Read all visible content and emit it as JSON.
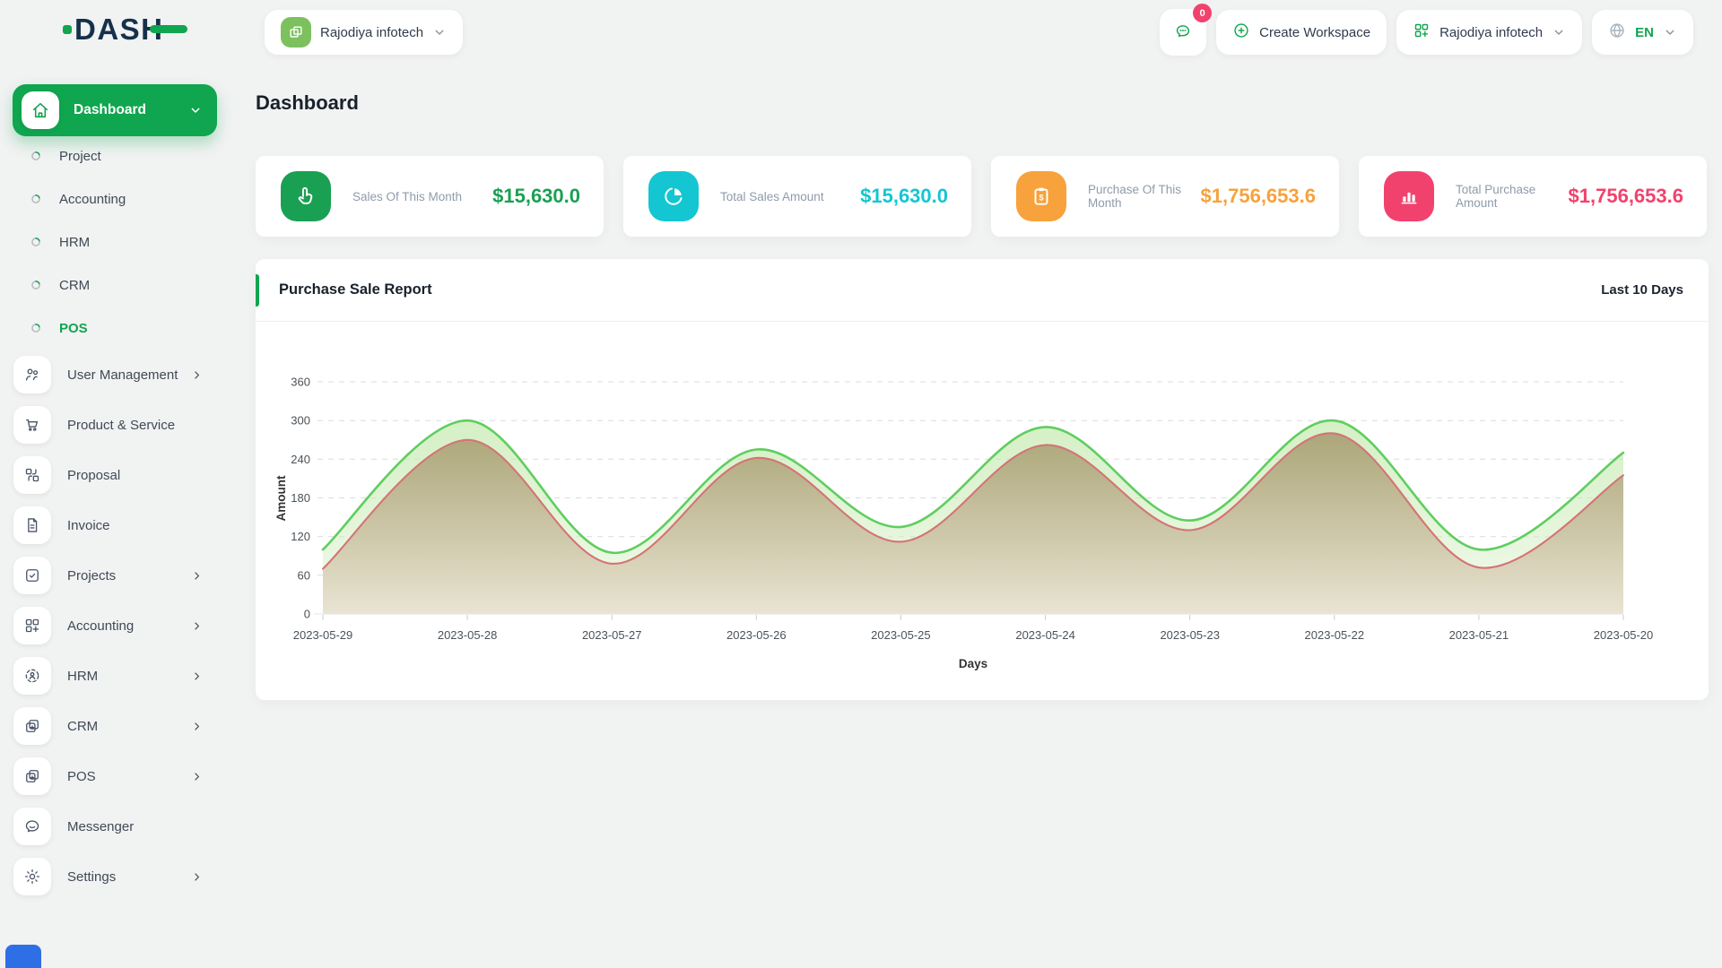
{
  "colors": {
    "primary": "#10a54f",
    "navy": "#15314b",
    "badge": "#f1426d",
    "widget": "#2f6fe6",
    "page_bg": "#f1f2f2"
  },
  "brand": {
    "name": "DASH"
  },
  "header": {
    "workspace_switcher": {
      "label": "Rajodiya infotech",
      "icon": "workspace-logo-icon"
    },
    "messages": {
      "badge": "0",
      "icon": "chat-icon"
    },
    "create_workspace": {
      "label": "Create Workspace",
      "icon": "plus-circle-icon"
    },
    "company_menu": {
      "label": "Rajodiya infotech",
      "icon": "grid-plus-icon"
    },
    "language": {
      "label": "EN",
      "icon": "globe-icon"
    }
  },
  "page": {
    "title": "Dashboard"
  },
  "sidebar": {
    "active_item": {
      "label": "Dashboard",
      "icon": "home"
    },
    "sub_items": [
      {
        "label": "Project",
        "active": false
      },
      {
        "label": "Accounting",
        "active": false
      },
      {
        "label": "HRM",
        "active": false
      },
      {
        "label": "CRM",
        "active": false
      },
      {
        "label": "POS",
        "active": true
      }
    ],
    "items": [
      {
        "label": "User Management",
        "icon": "users",
        "chevron": true
      },
      {
        "label": "Product & Service",
        "icon": "cart",
        "chevron": false
      },
      {
        "label": "Proposal",
        "icon": "proposal",
        "chevron": false
      },
      {
        "label": "Invoice",
        "icon": "invoice",
        "chevron": false
      },
      {
        "label": "Projects",
        "icon": "projects",
        "chevron": true
      },
      {
        "label": "Accounting",
        "icon": "accounting",
        "chevron": true
      },
      {
        "label": "HRM",
        "icon": "hrm",
        "chevron": true
      },
      {
        "label": "CRM",
        "icon": "crm",
        "chevron": true
      },
      {
        "label": "POS",
        "icon": "pos",
        "chevron": true
      },
      {
        "label": "Messenger",
        "icon": "messenger",
        "chevron": false
      },
      {
        "label": "Settings",
        "icon": "settings",
        "chevron": true
      }
    ]
  },
  "stat_cards": [
    {
      "label": "Sales Of This Month",
      "value": "$15,630.0",
      "color": "#1aa053",
      "icon": "hand-click"
    },
    {
      "label": "Total Sales Amount",
      "value": "$15,630.0",
      "color": "#14c6d1",
      "icon": "pie-chart"
    },
    {
      "label": "Purchase Of This Month",
      "value": "$1,756,653.6",
      "color": "#f7a23c",
      "icon": "clipboard-dollar"
    },
    {
      "label": "Total Purchase Amount",
      "value": "$1,756,653.6",
      "color": "#f1426d",
      "icon": "bar-chart"
    }
  ],
  "report": {
    "title": "Purchase Sale Report",
    "range_label": "Last 10 Days"
  },
  "chart_data": {
    "type": "area",
    "x": [
      "2023-05-29",
      "2023-05-28",
      "2023-05-27",
      "2023-05-26",
      "2023-05-25",
      "2023-05-24",
      "2023-05-23",
      "2023-05-22",
      "2023-05-21",
      "2023-05-20"
    ],
    "series": [
      {
        "name": "green",
        "color": "#5fce5f",
        "fill_top": "rgba(178,227,150,0.55)",
        "fill_bottom": "rgba(235,247,226,0.6)",
        "values": [
          100,
          300,
          95,
          255,
          135,
          290,
          145,
          300,
          100,
          250
        ]
      },
      {
        "name": "red",
        "color": "#d47474",
        "fill_top": "rgba(166,156,110,0.88)",
        "fill_bottom": "rgba(233,227,209,0.95)",
        "values": [
          70,
          270,
          78,
          242,
          112,
          262,
          130,
          280,
          72,
          215
        ]
      }
    ],
    "xlabel": "Days",
    "ylabel": "Amount",
    "ylim": [
      0,
      360
    ],
    "yticks": [
      0,
      60,
      120,
      180,
      240,
      300,
      360
    ],
    "grid": true,
    "legend": "none"
  }
}
